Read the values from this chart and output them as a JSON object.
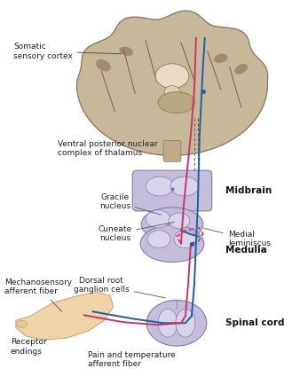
{
  "bg_color": "#ffffff",
  "colors": {
    "brain_fill": "#c8b89a",
    "brain_edge": "#8b7355",
    "brain_dark": "#7a6040",
    "brainstem_fill": "#c4bedc",
    "brainstem_edge": "#8877aa",
    "brainstem_inner": "#d8d4ec",
    "blue_line": "#1a5fa8",
    "pink_line": "#cc3366",
    "skin_fill": "#f0d4a8",
    "skin_edge": "#c8a87a",
    "label_color": "#222222",
    "bold_color": "#111111",
    "arrow_color": "#555555"
  },
  "font_sizes": {
    "label": 6.5,
    "bold_label": 7.5
  },
  "labels": {
    "somatic_sensory_cortex": "Somatic\nsensory cortex",
    "ventral_posterior": "Ventral posterior nuclear\ncomplex of thalamus",
    "midbrain": "Midbrain",
    "gracile_nucleus": "Gracile\nnucleus",
    "cuneate_nucleus": "Cuneate\nnucleus",
    "dorsal_root": "Dorsal root\nganglion cells",
    "medial_lemniscus": "Medial\nleminiscus",
    "medulla": "Medulla",
    "mechanosensory": "Mechanosensory\nafferent fiber",
    "receptor_endings": "Receptor\nendings",
    "pain_temp": "Pain and temperature\nafferent fiber",
    "spinal_cord": "Spinal cord"
  }
}
